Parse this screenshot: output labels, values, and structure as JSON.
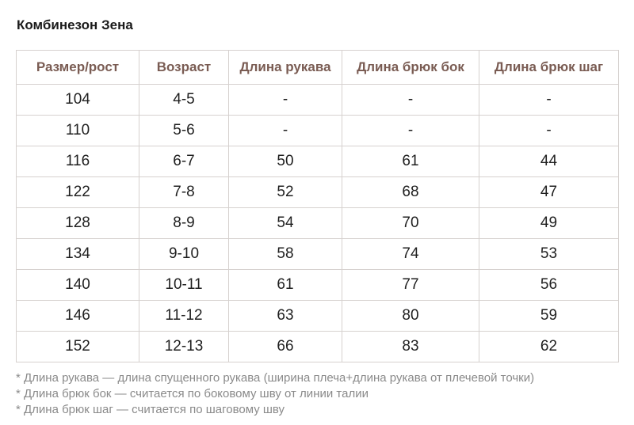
{
  "title": "Комбинезон Зена",
  "table": {
    "headers": [
      "Размер/рост",
      "Возраст",
      "Длина рукава",
      "Длина брюк бок",
      "Длина брюк шаг"
    ],
    "rows": [
      [
        "104",
        "4-5",
        "-",
        "-",
        "-"
      ],
      [
        "110",
        "5-6",
        "-",
        "-",
        "-"
      ],
      [
        "116",
        "6-7",
        "50",
        "61",
        "44"
      ],
      [
        "122",
        "7-8",
        "52",
        "68",
        "47"
      ],
      [
        "128",
        "8-9",
        "54",
        "70",
        "49"
      ],
      [
        "134",
        "9-10",
        "58",
        "74",
        "53"
      ],
      [
        "140",
        "10-11",
        "61",
        "77",
        "56"
      ],
      [
        "146",
        "11-12",
        "63",
        "80",
        "59"
      ],
      [
        "152",
        "12-13",
        "66",
        "83",
        "62"
      ]
    ]
  },
  "notes": [
    "* Длина рукава — длина спущенного рукава (ширина плеча+длина рукава от плечевой точки)",
    "* Длина брюк бок — считается по боковому шву от линии талии",
    "* Длина брюк шаг — считается по шаговому шву"
  ],
  "colors": {
    "header_text": "#7a5c53",
    "border": "#d6d1cf",
    "note_text": "#8a8a8a"
  }
}
